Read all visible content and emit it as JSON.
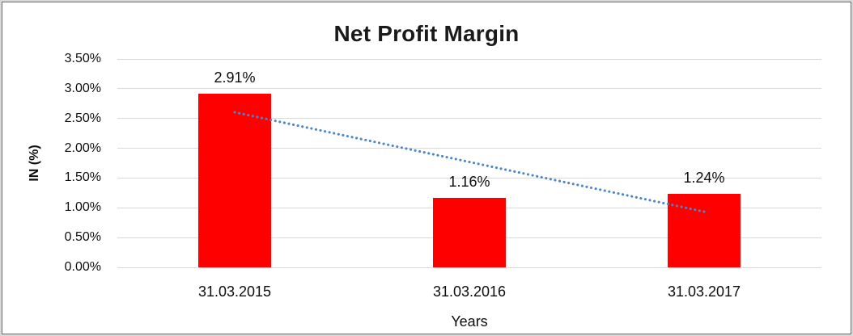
{
  "chart_data": {
    "type": "bar",
    "title": "Net Profit Margin",
    "xlabel": "Years",
    "ylabel": "IN (%)",
    "categories": [
      "31.03.2015",
      "31.03.2016",
      "31.03.2017"
    ],
    "values": [
      2.91,
      1.16,
      1.24
    ],
    "data_labels": [
      "2.91%",
      "1.16%",
      "1.24%"
    ],
    "unit": "percent",
    "ylim": [
      0,
      3.5
    ],
    "ytick_step": 0.5,
    "ytick_labels": [
      "0.00%",
      "0.50%",
      "1.00%",
      "1.50%",
      "2.00%",
      "2.50%",
      "3.00%",
      "3.50%"
    ],
    "grid": true,
    "legend": "none",
    "bar_color": "#FF0000",
    "gridline_color": "#D9D9D9",
    "trendline": {
      "type": "linear",
      "style": "dotted",
      "color": "#4A86C8",
      "endpoints": {
        "start": {
          "category_index": 0,
          "value": 2.605
        },
        "end": {
          "category_index": 2,
          "value": 0.935
        }
      }
    }
  }
}
